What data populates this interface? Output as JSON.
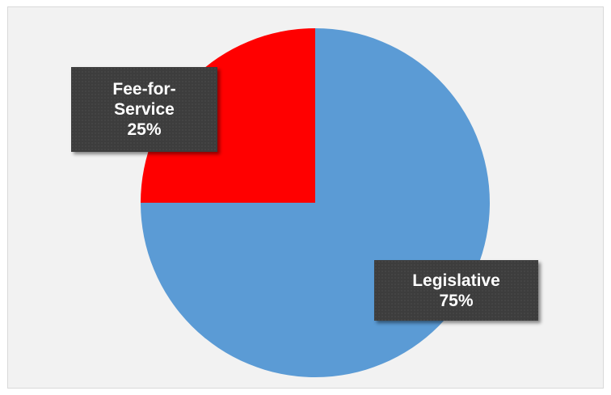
{
  "chart_data": {
    "type": "pie",
    "categories": [
      "Fee-for-Service",
      "Legislative"
    ],
    "values": [
      25,
      75
    ],
    "colors": [
      "#ff0000",
      "#5b9bd5"
    ],
    "labels": [
      {
        "name_lines": [
          "Fee-for-",
          "Service"
        ],
        "percent": "25%"
      },
      {
        "name_lines": [
          "Legislative"
        ],
        "percent": "75%"
      }
    ],
    "start_angle_deg": 0,
    "direction": "counterclockwise",
    "legend": "none"
  },
  "colors": {
    "background": "#f2f2f2",
    "border": "#d9d9d9",
    "label_box": "#3d3d3d",
    "label_text": "#ffffff"
  }
}
